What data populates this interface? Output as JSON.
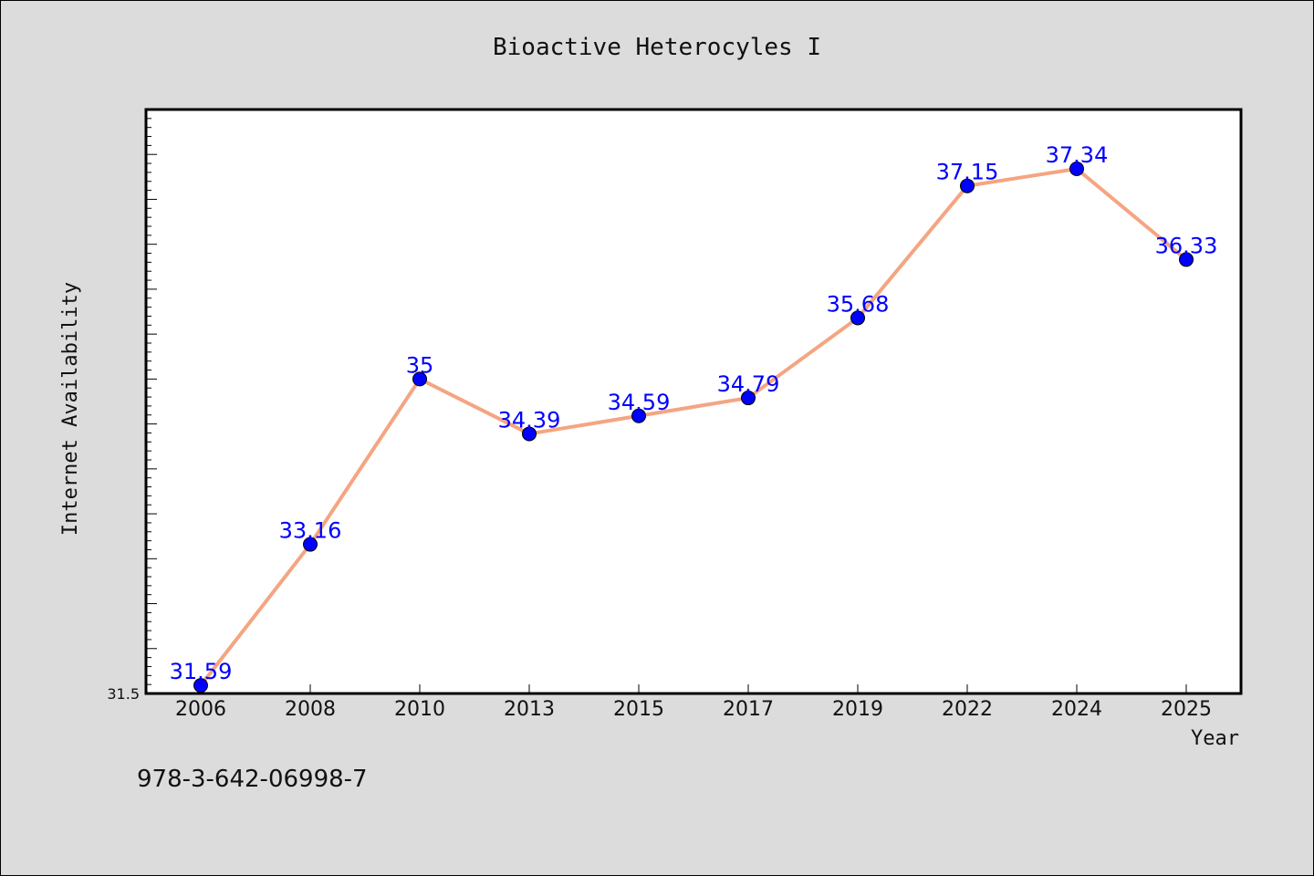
{
  "chart_data": {
    "type": "line",
    "title": "Bioactive Heterocyles I",
    "xlabel": "Year",
    "ylabel": "Internet Availability",
    "categories": [
      "2006",
      "2008",
      "2010",
      "2013",
      "2015",
      "2017",
      "2019",
      "2022",
      "2024",
      "2025"
    ],
    "series": [
      {
        "values": [
          31.59,
          33.16,
          35,
          34.39,
          34.59,
          34.79,
          35.68,
          37.15,
          37.34,
          36.33
        ],
        "data_labels": [
          "31.59",
          "33.16",
          "35",
          "34.39",
          "34.59",
          "34.79",
          "35.68",
          "37.15",
          "37.34",
          "36.33"
        ],
        "line_color": "#f4a582",
        "marker_color": "#0000ff"
      }
    ],
    "ylim": [
      31.5,
      38.0
    ],
    "y_tick_labels": [
      "31.5"
    ],
    "grid": false,
    "background": "#dcdcdc",
    "plot_background": "#ffffff"
  },
  "footer": {
    "isbn": "978-3-642-06998-7"
  }
}
